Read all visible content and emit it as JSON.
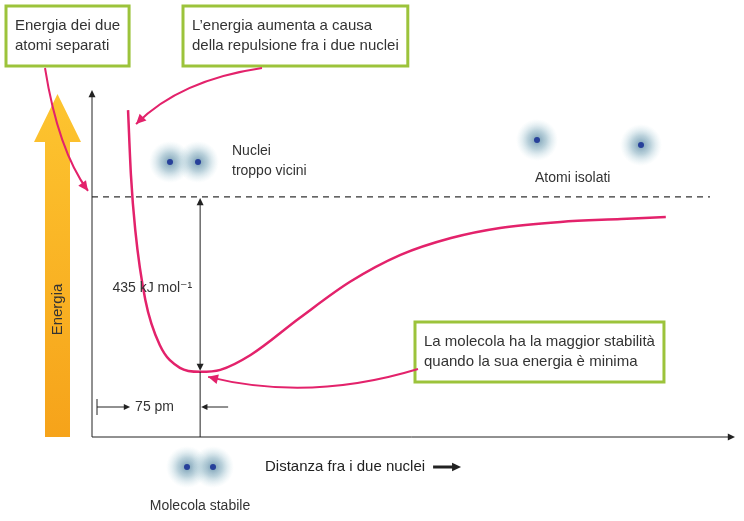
{
  "chart_data": {
    "type": "line",
    "x_label": "Distanza fra i due nuclei",
    "y_label": "Energia",
    "x": [
      25,
      27,
      30,
      37,
      47,
      61,
      75,
      89,
      110,
      144,
      179,
      214,
      249,
      283,
      325,
      367,
      398
    ],
    "values": [
      216,
      55,
      -82,
      -256,
      -368,
      -425,
      -435,
      -430,
      -393,
      -301,
      -211,
      -144,
      -102,
      -77,
      -62,
      -55,
      -50
    ],
    "color": "#e3226b",
    "xlim": [
      0,
      446
    ],
    "ylim": [
      -597,
      266
    ],
    "grid": false,
    "tick_labels": false,
    "asymptote": {
      "y": 0,
      "line_style": "dashed",
      "text": [
        "Energia dei due",
        "atomi separati"
      ]
    },
    "repulsion": {
      "text": [
        "L’energia aumenta a causa",
        "della repulsione fra i due nuclei"
      ]
    },
    "minimum": {
      "text": [
        "La molecola ha la maggior stabilità",
        "quando la sua energia è minima"
      ]
    },
    "bond_energy": {
      "value": 435,
      "label": "435 kJ mol⁻¹"
    },
    "bond_length": {
      "value": 75,
      "label": "75 pm"
    },
    "illustrations": {
      "too_close": [
        "Nuclei",
        "troppo vicini"
      ],
      "isolated": [
        "Atomi isolati"
      ],
      "stable": [
        "Molecola stabile"
      ]
    }
  }
}
